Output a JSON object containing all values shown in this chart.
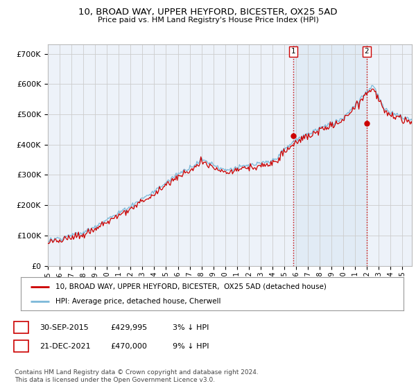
{
  "title": "10, BROAD WAY, UPPER HEYFORD, BICESTER, OX25 5AD",
  "subtitle": "Price paid vs. HM Land Registry's House Price Index (HPI)",
  "ylim": [
    0,
    730000
  ],
  "xlim_start": 1995.0,
  "xlim_end": 2025.8,
  "sale1_date": 2015.75,
  "sale1_price": 429995,
  "sale1_label": "1",
  "sale2_date": 2021.97,
  "sale2_price": 470000,
  "sale2_label": "2",
  "hpi_color": "#7bb8d8",
  "price_color": "#cc0000",
  "vline_color": "#cc0000",
  "grid_color": "#cccccc",
  "bg_color": "#ffffff",
  "plot_bg_color": "#edf2f9",
  "legend_line1": "10, BROAD WAY, UPPER HEYFORD, BICESTER,  OX25 5AD (detached house)",
  "legend_line2": "HPI: Average price, detached house, Cherwell",
  "table_row1": [
    "1",
    "30-SEP-2015",
    "£429,995",
    "3% ↓ HPI"
  ],
  "table_row2": [
    "2",
    "21-DEC-2021",
    "£470,000",
    "9% ↓ HPI"
  ],
  "footer": "Contains HM Land Registry data © Crown copyright and database right 2024.\nThis data is licensed under the Open Government Licence v3.0.",
  "xlabel_years": [
    1995,
    1996,
    1997,
    1998,
    1999,
    2000,
    2001,
    2002,
    2003,
    2004,
    2005,
    2006,
    2007,
    2008,
    2009,
    2010,
    2011,
    2012,
    2013,
    2014,
    2015,
    2016,
    2017,
    2018,
    2019,
    2020,
    2021,
    2022,
    2023,
    2024,
    2025
  ]
}
